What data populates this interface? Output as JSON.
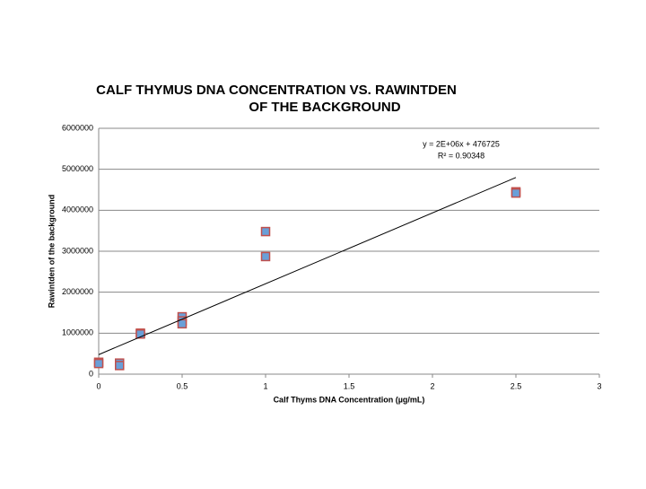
{
  "chart_data": {
    "type": "scatter",
    "title": [
      "CALF THYMUS DNA CONCENTRATION VS. RAWINTDEN",
      "OF THE BACKGROUND"
    ],
    "x_label": "Calf Thyms DNA Concentration (µg/mL)",
    "y_label": "Rawintden of the background",
    "x": [
      0,
      0,
      0.125,
      0.125,
      0.25,
      0.25,
      0.5,
      0.5,
      0.5,
      1,
      1,
      2.5,
      2.5
    ],
    "values": [
      290000,
      260000,
      270000,
      210000,
      1000000,
      980000,
      1400000,
      1300000,
      1230000,
      3480000,
      2870000,
      4450000,
      4420000
    ],
    "marker_fill": "#6a9fd8",
    "marker_edge": "#c0504d",
    "trendline": {
      "x": [
        0,
        2.5
      ],
      "values": [
        476725,
        4800000
      ],
      "color": "#000000"
    },
    "annotations": [
      "y = 2E+06x + 476725",
      "R² = 0.90348"
    ],
    "xlim": [
      0,
      3
    ],
    "xticks": [
      0,
      0.5,
      1,
      1.5,
      2,
      2.5,
      3
    ],
    "ylim": [
      0,
      6000000
    ],
    "yticks": [
      0,
      1000000,
      2000000,
      3000000,
      4000000,
      5000000,
      6000000
    ],
    "grid": true
  }
}
